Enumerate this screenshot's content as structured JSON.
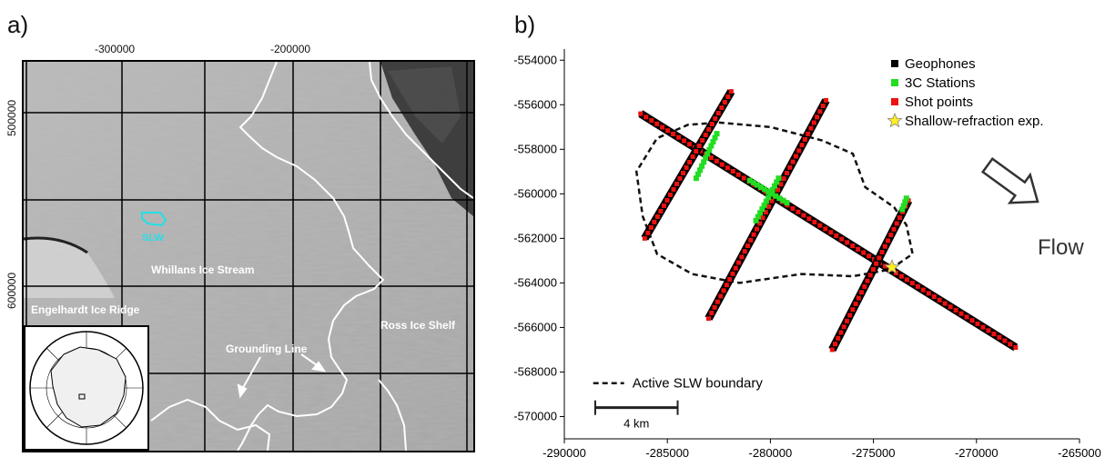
{
  "panel_a": {
    "panel_label": "a)",
    "x_ticks": [
      "-300000",
      "-200000"
    ],
    "y_ticks": [
      "500000",
      "600000"
    ],
    "labels": {
      "slw": "SLW",
      "whillans": "Whillans Ice Stream",
      "engelhardt": "Engelhardt Ice Ridge",
      "ross": "Ross Ice Shelf",
      "grounding": "Grounding Line"
    },
    "colors": {
      "slw_outline": "#22e0e8",
      "grounding_line": "#ffffff"
    }
  },
  "panel_b": {
    "panel_label": "b)",
    "flow_label": "Flow",
    "scale_label": "4 km",
    "boundary_legend": "Active SLW boundary"
  },
  "chart_data": {
    "type": "scatter",
    "xlim": [
      -290000,
      -265000
    ],
    "ylim": [
      -571000,
      -553500
    ],
    "x_ticks": [
      "-290000",
      "-285000",
      "-280000",
      "-275000",
      "-270000",
      "-265000"
    ],
    "y_ticks": [
      "-554000",
      "-556000",
      "-558000",
      "-560000",
      "-562000",
      "-564000",
      "-566000",
      "-568000",
      "-570000"
    ],
    "legend": [
      {
        "name": "Geophones",
        "color": "#000000",
        "marker": "square"
      },
      {
        "name": "3C Stations",
        "color": "#22dd22",
        "marker": "square"
      },
      {
        "name": "Shot points",
        "color": "#ee1111",
        "marker": "square"
      },
      {
        "name": "Shallow-refraction exp.",
        "color": "#ffee22",
        "marker": "star"
      }
    ],
    "lines": [
      {
        "x1": -286300,
        "y1": -556400,
        "x2": -268100,
        "y2": -566900
      },
      {
        "x1": -281900,
        "y1": -555400,
        "x2": -286100,
        "y2": -562000
      },
      {
        "x1": -277300,
        "y1": -555800,
        "x2": -283000,
        "y2": -565600
      },
      {
        "x1": -273300,
        "y1": -560300,
        "x2": -277000,
        "y2": -567000
      }
    ],
    "stations_3c": [
      {
        "x1": -282600,
        "y1": -557300,
        "x2": -283600,
        "y2": -559300
      },
      {
        "x1": -279600,
        "y1": -559300,
        "x2": -280700,
        "y2": -561200
      },
      {
        "x1": -281000,
        "y1": -559400,
        "x2": -279200,
        "y2": -560400
      },
      {
        "x1": -273400,
        "y1": -560200,
        "x2": -273600,
        "y2": -560700
      }
    ],
    "star": {
      "x": -274100,
      "y": -563300
    },
    "boundary": [
      [
        -282500,
        -556800
      ],
      [
        -280000,
        -557000
      ],
      [
        -277500,
        -557600
      ],
      [
        -276000,
        -558200
      ],
      [
        -275400,
        -559700
      ],
      [
        -274000,
        -560600
      ],
      [
        -273400,
        -561400
      ],
      [
        -273100,
        -562700
      ],
      [
        -274200,
        -563400
      ],
      [
        -276000,
        -563700
      ],
      [
        -278500,
        -563600
      ],
      [
        -281500,
        -564000
      ],
      [
        -283800,
        -563600
      ],
      [
        -285500,
        -562700
      ],
      [
        -286200,
        -561000
      ],
      [
        -286500,
        -559000
      ],
      [
        -285500,
        -557500
      ],
      [
        -284000,
        -556900
      ],
      [
        -282500,
        -556800
      ]
    ],
    "scale_bar": {
      "x1": -288500,
      "x2": -284500,
      "y": -569600
    }
  }
}
